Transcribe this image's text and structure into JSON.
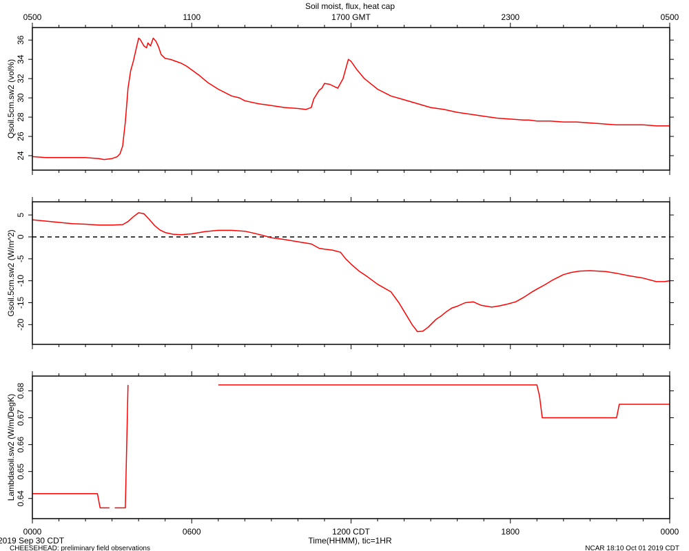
{
  "title": "Soil moist, flux, heat cap",
  "top_axis_ticks": [
    "0500",
    "1100",
    "1700 GMT",
    "2300",
    "0500"
  ],
  "bottom_axis_ticks": [
    "0000",
    "0600",
    "1200 CDT",
    "1800",
    "0000"
  ],
  "xlabel": "Time(HHMM), tic=1HR",
  "date_label": "2019 Sep 30 CDT",
  "footer_left": "CHEESEHEAD: preliminary field observations",
  "footer_right": "NCAR 18:10 Oct 01 2019 CDT",
  "colors": {
    "series": "#ff0000",
    "axes": "#000000"
  },
  "chart_data": [
    {
      "type": "line",
      "ylabel": "Qsoil.5cm.sw2 (vol%)",
      "xlim": [
        0,
        24
      ],
      "ylim": [
        22.5,
        37.3
      ],
      "yticks": [
        24,
        26,
        28,
        30,
        32,
        34,
        36
      ],
      "x": [
        0,
        0.5,
        1,
        1.5,
        2,
        2.5,
        2.7,
        3.0,
        3.2,
        3.3,
        3.4,
        3.5,
        3.6,
        3.7,
        3.8,
        3.9,
        4.0,
        4.05,
        4.2,
        4.3,
        4.35,
        4.45,
        4.55,
        4.65,
        4.75,
        4.85,
        5.0,
        5.2,
        5.4,
        5.6,
        5.8,
        6.0,
        6.3,
        6.6,
        7.0,
        7.5,
        7.8,
        8.0,
        8.5,
        9.0,
        9.5,
        10.0,
        10.3,
        10.5,
        10.6,
        10.8,
        10.9,
        11.0,
        11.2,
        11.5,
        11.7,
        11.9,
        12.0,
        12.2,
        12.5,
        13.0,
        13.5,
        14.0,
        14.5,
        15.0,
        15.5,
        16.0,
        16.5,
        17.0,
        17.5,
        18.0,
        18.5,
        18.7,
        19.0,
        19.5,
        20.0,
        20.5,
        21.0,
        21.5,
        22.0,
        22.5,
        23.0,
        23.5,
        24.0
      ],
      "values": [
        23.9,
        23.8,
        23.8,
        23.8,
        23.8,
        23.7,
        23.6,
        23.7,
        23.9,
        24.2,
        25.0,
        27.5,
        31.0,
        32.8,
        33.8,
        35.0,
        36.2,
        36.1,
        35.4,
        35.2,
        35.7,
        35.4,
        36.2,
        35.9,
        35.3,
        34.5,
        34.1,
        34.0,
        33.8,
        33.6,
        33.3,
        32.9,
        32.3,
        31.6,
        30.9,
        30.2,
        30.0,
        29.7,
        29.4,
        29.2,
        29.0,
        28.9,
        28.8,
        29.0,
        29.9,
        30.8,
        31.0,
        31.5,
        31.4,
        31.0,
        32.0,
        34.0,
        33.8,
        33.0,
        32.0,
        30.9,
        30.2,
        29.8,
        29.4,
        29.0,
        28.8,
        28.5,
        28.3,
        28.1,
        27.9,
        27.8,
        27.7,
        27.7,
        27.6,
        27.6,
        27.5,
        27.5,
        27.4,
        27.3,
        27.2,
        27.2,
        27.2,
        27.1,
        27.1
      ]
    },
    {
      "type": "line",
      "ylabel": "Gsoil.5cm.sw2 (W/m^2)",
      "xlim": [
        0,
        24
      ],
      "ylim": [
        -24.5,
        8
      ],
      "yticks": [
        5,
        0,
        -5,
        -10,
        -15,
        -20
      ],
      "reference_line": 0,
      "x": [
        0,
        0.5,
        1,
        1.5,
        2,
        2.5,
        3,
        3.4,
        3.6,
        3.8,
        4.0,
        4.2,
        4.4,
        4.6,
        4.8,
        5.0,
        5.3,
        5.6,
        6.0,
        6.5,
        7.0,
        7.5,
        8.0,
        8.3,
        8.7,
        9.0,
        9.5,
        10.0,
        10.5,
        10.8,
        11.0,
        11.3,
        11.6,
        11.8,
        12.0,
        12.3,
        12.6,
        13.0,
        13.5,
        13.8,
        14.0,
        14.3,
        14.5,
        14.7,
        14.9,
        15.0,
        15.2,
        15.4,
        15.6,
        15.8,
        16.0,
        16.3,
        16.6,
        16.9,
        17.1,
        17.3,
        17.6,
        17.9,
        18.2,
        18.5,
        18.8,
        19.0,
        19.3,
        19.6,
        20.0,
        20.3,
        20.6,
        21.0,
        21.3,
        21.6,
        22.0,
        22.5,
        23.0,
        23.5,
        23.8,
        24.0
      ],
      "values": [
        3.9,
        3.6,
        3.3,
        3.0,
        2.9,
        2.7,
        2.7,
        2.8,
        3.5,
        4.6,
        5.5,
        5.3,
        4.0,
        2.6,
        1.6,
        1.0,
        0.6,
        0.5,
        0.7,
        1.2,
        1.5,
        1.5,
        1.3,
        0.9,
        0.3,
        -0.2,
        -0.6,
        -1.1,
        -1.6,
        -2.6,
        -2.8,
        -3.0,
        -3.5,
        -5.0,
        -6.2,
        -7.8,
        -9.0,
        -10.8,
        -12.5,
        -15.0,
        -17.0,
        -20.0,
        -21.6,
        -21.5,
        -20.6,
        -20.0,
        -18.8,
        -18.0,
        -17.0,
        -16.2,
        -15.8,
        -15.0,
        -14.8,
        -15.6,
        -15.8,
        -16.0,
        -15.7,
        -15.3,
        -14.8,
        -13.8,
        -12.6,
        -11.9,
        -10.9,
        -9.8,
        -8.6,
        -8.1,
        -7.8,
        -7.7,
        -7.8,
        -7.9,
        -8.3,
        -8.9,
        -9.4,
        -10.2,
        -10.2,
        -10.0
      ]
    },
    {
      "type": "line",
      "ylabel": "Lambdasoil.sw2 (W/m/DegK)",
      "xlim": [
        0,
        24
      ],
      "ylim": [
        0.6325,
        0.6855
      ],
      "yticks": [
        0.64,
        0.65,
        0.66,
        0.67,
        0.68
      ],
      "segments": [
        {
          "x": [
            0,
            2.45,
            2.55,
            2.9
          ],
          "values": [
            0.6418,
            0.6418,
            0.6365,
            0.6365
          ]
        },
        {
          "x": [
            3.1,
            3.5,
            3.6
          ],
          "values": [
            0.6365,
            0.6365,
            0.6822
          ]
        },
        {
          "x": [
            7.0,
            19.0,
            19.1,
            19.2,
            22.0,
            22.1,
            24.0
          ],
          "values": [
            0.6822,
            0.6822,
            0.678,
            0.67,
            0.67,
            0.675,
            0.675
          ]
        }
      ]
    }
  ]
}
